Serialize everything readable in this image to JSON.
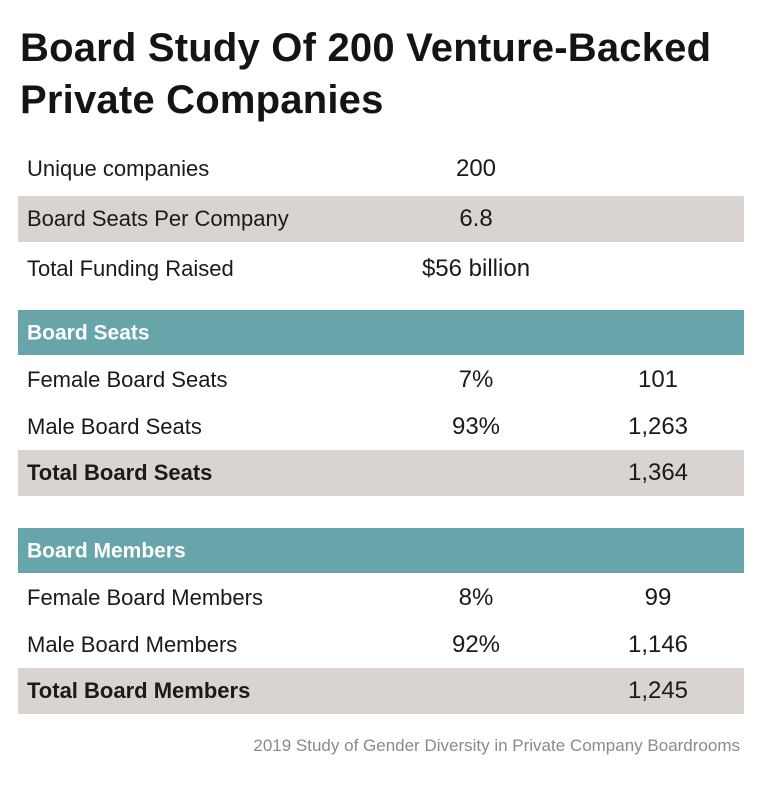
{
  "title": "Board Study Of 200 Venture-Backed Private Companies",
  "summary": [
    {
      "label": "Unique companies",
      "value": "200"
    },
    {
      "label": "Board Seats Per Company",
      "value": "6.8"
    },
    {
      "label": "Total Funding Raised",
      "value": "$56 billion"
    }
  ],
  "board_seats": {
    "header": "Board Seats",
    "rows": [
      {
        "label": "Female Board Seats",
        "percent": "7%",
        "count": "101"
      },
      {
        "label": "Male Board Seats",
        "percent": "93%",
        "count": "1,263"
      }
    ],
    "total": {
      "label": "Total Board Seats",
      "count": "1,364"
    }
  },
  "board_members": {
    "header": "Board Members",
    "rows": [
      {
        "label": "Female Board Members",
        "percent": "8%",
        "count": "99"
      },
      {
        "label": "Male Board Members",
        "percent": "92%",
        "count": "1,146"
      }
    ],
    "total": {
      "label": "Total Board Members",
      "count": "1,245"
    }
  },
  "footer": "2019 Study of Gender Diversity in Private Company Boardrooms",
  "colors": {
    "header_bg": "#68a5ab",
    "shade_bg": "#d9d4d0",
    "header_text": "#ffffff"
  }
}
